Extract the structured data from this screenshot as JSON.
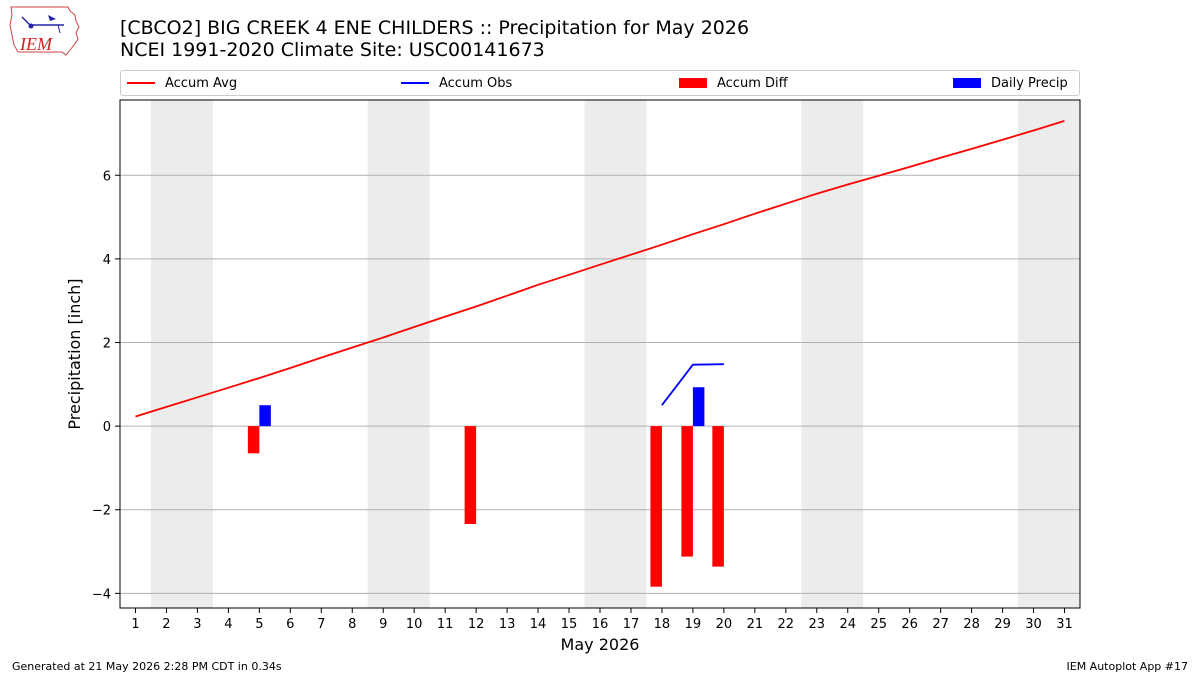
{
  "header": {
    "title_line1": "[CBCO2] BIG CREEK 4 ENE CHILDERS :: Precipitation for May 2026",
    "title_line2": "NCEI 1991-2020 Climate Site: USC00141673",
    "logo_text": "IEM"
  },
  "legend": {
    "items": [
      {
        "label": "Accum Avg",
        "color": "#ff0000",
        "kind": "line"
      },
      {
        "label": "Accum Obs",
        "color": "#0000ff",
        "kind": "line"
      },
      {
        "label": "Accum Diff",
        "color": "#ff0000",
        "kind": "box"
      },
      {
        "label": "Daily Precip",
        "color": "#0000ff",
        "kind": "box"
      }
    ]
  },
  "footer": {
    "left": "Generated at 21 May 2026 2:28 PM CDT in 0.34s",
    "right": "IEM Autoplot App #17"
  },
  "chart_data": {
    "type": "bar",
    "xlabel": "May 2026",
    "ylabel": "Precipitation [inch]",
    "xlim": [
      0.5,
      31.5
    ],
    "ylim": [
      -4.35,
      7.8
    ],
    "x_ticks": [
      1,
      2,
      3,
      4,
      5,
      6,
      7,
      8,
      9,
      10,
      11,
      12,
      13,
      14,
      15,
      16,
      17,
      18,
      19,
      20,
      21,
      22,
      23,
      24,
      25,
      26,
      27,
      28,
      29,
      30,
      31
    ],
    "y_ticks": [
      -4,
      -2,
      0,
      2,
      4,
      6
    ],
    "grid": "y",
    "legend_position": "top",
    "weekend_bands": [
      [
        1.5,
        3.5
      ],
      [
        8.5,
        10.5
      ],
      [
        15.5,
        17.5
      ],
      [
        22.5,
        24.5
      ],
      [
        29.5,
        31.5
      ]
    ],
    "series": [
      {
        "name": "Accum Avg",
        "kind": "line",
        "color": "#ff0000",
        "x": [
          1,
          2,
          3,
          4,
          5,
          6,
          7,
          8,
          9,
          10,
          11,
          12,
          13,
          14,
          15,
          16,
          17,
          18,
          19,
          20,
          21,
          22,
          23,
          24,
          25,
          26,
          27,
          28,
          29,
          30,
          31
        ],
        "values": [
          0.23,
          0.46,
          0.69,
          0.92,
          1.15,
          1.39,
          1.64,
          1.88,
          2.12,
          2.37,
          2.62,
          2.86,
          3.12,
          3.38,
          3.62,
          3.86,
          4.1,
          4.34,
          4.59,
          4.83,
          5.08,
          5.32,
          5.56,
          5.78,
          5.99,
          6.2,
          6.42,
          6.63,
          6.85,
          7.07,
          7.3
        ]
      },
      {
        "name": "Accum Obs",
        "kind": "line",
        "color": "#0000ff",
        "x": [
          18,
          19,
          20
        ],
        "values": [
          0.5,
          1.47,
          1.48
        ]
      },
      {
        "name": "Accum Diff",
        "kind": "bar",
        "color": "#ff0000",
        "x": [
          5,
          12,
          18,
          19,
          20
        ],
        "values": [
          -0.65,
          -2.34,
          -3.84,
          -3.12,
          -3.36
        ]
      },
      {
        "name": "Daily Precip",
        "kind": "bar",
        "color": "#0000ff",
        "x": [
          5,
          19
        ],
        "values": [
          0.5,
          0.93
        ]
      }
    ]
  }
}
